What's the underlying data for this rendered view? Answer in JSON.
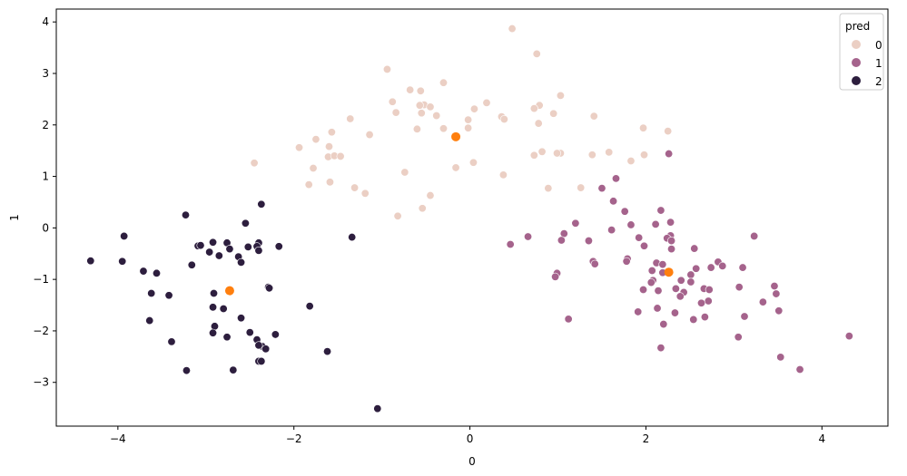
{
  "chart_data": {
    "type": "scatter",
    "title": "",
    "xlabel": "0",
    "ylabel": "1",
    "xlim": [
      -4.7,
      4.75
    ],
    "ylim": [
      -3.85,
      4.25
    ],
    "xticks": [
      -4,
      -2,
      0,
      2,
      4
    ],
    "yticks": [
      -3,
      -2,
      -1,
      0,
      1,
      2,
      3,
      4
    ],
    "grid": false,
    "legend": {
      "title": "pred",
      "position": "top-right",
      "entries": [
        "0",
        "1",
        "2"
      ]
    },
    "colors": {
      "0": "#ebcfc4",
      "1": "#a5638c",
      "2": "#2d1e3e",
      "centroid": "#ff7f0e"
    },
    "series": [
      {
        "name": "0",
        "points": [
          [
            0.48,
            3.87
          ],
          [
            0.76,
            3.38
          ],
          [
            -0.94,
            3.08
          ],
          [
            -0.3,
            2.82
          ],
          [
            -0.68,
            2.68
          ],
          [
            -0.56,
            2.66
          ],
          [
            1.03,
            2.57
          ],
          [
            -0.88,
            2.45
          ],
          [
            0.19,
            2.43
          ],
          [
            -0.52,
            2.39
          ],
          [
            -0.57,
            2.38
          ],
          [
            0.79,
            2.38
          ],
          [
            -0.45,
            2.35
          ],
          [
            0.73,
            2.32
          ],
          [
            0.05,
            2.31
          ],
          [
            -0.84,
            2.24
          ],
          [
            -0.55,
            2.23
          ],
          [
            -0.38,
            2.18
          ],
          [
            0.95,
            2.22
          ],
          [
            1.41,
            2.17
          ],
          [
            0.36,
            2.16
          ],
          [
            -1.36,
            2.12
          ],
          [
            0.39,
            2.11
          ],
          [
            -0.02,
            2.1
          ],
          [
            0.78,
            2.03
          ],
          [
            1.97,
            1.94
          ],
          [
            -0.6,
            1.92
          ],
          [
            -0.3,
            1.93
          ],
          [
            -0.02,
            1.94
          ],
          [
            2.25,
            1.88
          ],
          [
            -1.57,
            1.86
          ],
          [
            -1.14,
            1.81
          ],
          [
            -1.75,
            1.72
          ],
          [
            -1.6,
            1.58
          ],
          [
            -1.94,
            1.56
          ],
          [
            -1.61,
            1.38
          ],
          [
            -1.54,
            1.4
          ],
          [
            -1.47,
            1.39
          ],
          [
            0.82,
            1.48
          ],
          [
            1.03,
            1.45
          ],
          [
            0.99,
            1.45
          ],
          [
            1.58,
            1.47
          ],
          [
            0.73,
            1.41
          ],
          [
            1.39,
            1.42
          ],
          [
            1.98,
            1.42
          ],
          [
            1.83,
            1.3
          ],
          [
            -2.45,
            1.26
          ],
          [
            0.04,
            1.27
          ],
          [
            -0.16,
            1.17
          ],
          [
            -1.78,
            1.16
          ],
          [
            -1.59,
            0.89
          ],
          [
            -0.74,
            1.08
          ],
          [
            0.38,
            1.03
          ],
          [
            -1.83,
            0.84
          ],
          [
            -1.31,
            0.78
          ],
          [
            1.26,
            0.78
          ],
          [
            0.89,
            0.77
          ],
          [
            -1.19,
            0.67
          ],
          [
            -0.45,
            0.63
          ],
          [
            -0.54,
            0.38
          ],
          [
            -0.82,
            0.23
          ]
        ]
      },
      {
        "name": "1",
        "points": [
          [
            2.26,
            1.44
          ],
          [
            1.66,
            0.96
          ],
          [
            1.5,
            0.77
          ],
          [
            1.63,
            0.52
          ],
          [
            1.76,
            0.32
          ],
          [
            2.17,
            0.34
          ],
          [
            2.28,
            0.11
          ],
          [
            2.11,
            0.07
          ],
          [
            1.2,
            0.09
          ],
          [
            1.83,
            0.06
          ],
          [
            1.61,
            -0.04
          ],
          [
            1.07,
            -0.11
          ],
          [
            2.28,
            -0.15
          ],
          [
            3.23,
            -0.16
          ],
          [
            0.66,
            -0.17
          ],
          [
            1.92,
            -0.19
          ],
          [
            2.24,
            -0.2
          ],
          [
            1.35,
            -0.25
          ],
          [
            1.04,
            -0.24
          ],
          [
            2.29,
            -0.25
          ],
          [
            0.46,
            -0.32
          ],
          [
            1.98,
            -0.35
          ],
          [
            2.55,
            -0.4
          ],
          [
            2.29,
            -0.41
          ],
          [
            1.79,
            -0.6
          ],
          [
            1.78,
            -0.65
          ],
          [
            1.4,
            -0.65
          ],
          [
            2.12,
            -0.68
          ],
          [
            2.82,
            -0.66
          ],
          [
            1.42,
            -0.7
          ],
          [
            2.19,
            -0.71
          ],
          [
            2.87,
            -0.74
          ],
          [
            2.74,
            -0.77
          ],
          [
            3.1,
            -0.77
          ],
          [
            2.57,
            -0.79
          ],
          [
            2.07,
            -0.83
          ],
          [
            0.99,
            -0.88
          ],
          [
            2.19,
            -0.87
          ],
          [
            2.51,
            -0.91
          ],
          [
            0.97,
            -0.95
          ],
          [
            2.08,
            -1.02
          ],
          [
            2.4,
            -1.02
          ],
          [
            2.06,
            -1.06
          ],
          [
            1.97,
            -1.2
          ],
          [
            2.14,
            -1.22
          ],
          [
            2.51,
            -1.05
          ],
          [
            3.06,
            -1.15
          ],
          [
            3.46,
            -1.13
          ],
          [
            2.34,
            -1.18
          ],
          [
            2.66,
            -1.18
          ],
          [
            2.72,
            -1.2
          ],
          [
            3.48,
            -1.28
          ],
          [
            2.43,
            -1.25
          ],
          [
            2.39,
            -1.33
          ],
          [
            2.71,
            -1.42
          ],
          [
            3.33,
            -1.44
          ],
          [
            2.63,
            -1.46
          ],
          [
            2.13,
            -1.56
          ],
          [
            2.33,
            -1.65
          ],
          [
            1.91,
            -1.63
          ],
          [
            3.51,
            -1.61
          ],
          [
            3.12,
            -1.72
          ],
          [
            2.67,
            -1.73
          ],
          [
            2.54,
            -1.78
          ],
          [
            1.12,
            -1.77
          ],
          [
            2.2,
            -1.87
          ],
          [
            4.31,
            -2.1
          ],
          [
            3.05,
            -2.12
          ],
          [
            2.17,
            -2.33
          ],
          [
            3.53,
            -2.51
          ],
          [
            3.75,
            -2.75
          ]
        ]
      },
      {
        "name": "2",
        "points": [
          [
            -2.37,
            0.46
          ],
          [
            -3.23,
            0.25
          ],
          [
            -2.55,
            0.09
          ],
          [
            -3.93,
            -0.16
          ],
          [
            -1.34,
            -0.18
          ],
          [
            -2.92,
            -0.28
          ],
          [
            -2.76,
            -0.29
          ],
          [
            -2.4,
            -0.29
          ],
          [
            -3.09,
            -0.35
          ],
          [
            -3.06,
            -0.34
          ],
          [
            -2.42,
            -0.36
          ],
          [
            -2.17,
            -0.36
          ],
          [
            -2.52,
            -0.37
          ],
          [
            -2.73,
            -0.41
          ],
          [
            -2.96,
            -0.47
          ],
          [
            -2.4,
            -0.44
          ],
          [
            -2.85,
            -0.54
          ],
          [
            -2.63,
            -0.56
          ],
          [
            -2.6,
            -0.67
          ],
          [
            -4.31,
            -0.64
          ],
          [
            -3.95,
            -0.65
          ],
          [
            -3.16,
            -0.72
          ],
          [
            -3.71,
            -0.84
          ],
          [
            -3.56,
            -0.88
          ],
          [
            -2.29,
            -1.15
          ],
          [
            -2.28,
            -1.17
          ],
          [
            -3.62,
            -1.27
          ],
          [
            -3.42,
            -1.31
          ],
          [
            -2.91,
            -1.27
          ],
          [
            -1.82,
            -1.52
          ],
          [
            -2.92,
            -1.54
          ],
          [
            -2.8,
            -1.57
          ],
          [
            -3.64,
            -1.8
          ],
          [
            -2.6,
            -1.75
          ],
          [
            -2.9,
            -1.91
          ],
          [
            -2.5,
            -2.03
          ],
          [
            -2.21,
            -2.07
          ],
          [
            -2.92,
            -2.04
          ],
          [
            -2.76,
            -2.12
          ],
          [
            -2.42,
            -2.17
          ],
          [
            -3.39,
            -2.21
          ],
          [
            -2.36,
            -2.3
          ],
          [
            -2.4,
            -2.28
          ],
          [
            -2.32,
            -2.35
          ],
          [
            -1.62,
            -2.4
          ],
          [
            -2.4,
            -2.59
          ],
          [
            -2.37,
            -2.59
          ],
          [
            -3.22,
            -2.77
          ],
          [
            -2.69,
            -2.76
          ],
          [
            -1.05,
            -3.51
          ]
        ]
      }
    ],
    "centroids": [
      [
        -0.16,
        1.77
      ],
      [
        2.26,
        -0.86
      ],
      [
        -2.73,
        -1.22
      ]
    ]
  }
}
